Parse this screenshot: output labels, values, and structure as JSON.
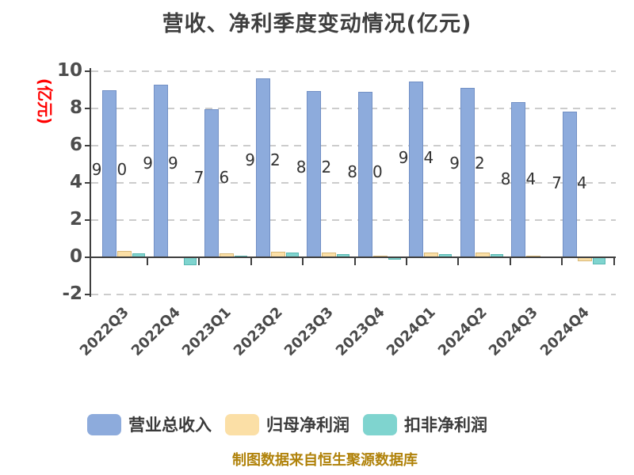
{
  "title": "营收、净利季度变动情况(亿元)",
  "y_axis": {
    "label": "(亿元)",
    "color": "#FF0000"
  },
  "footer": "制图数据来自恒生聚源数据库",
  "chart_data": {
    "type": "bar",
    "title": "营收、净利季度变动情况(亿元)",
    "categories": [
      "2022Q3",
      "2022Q4",
      "2023Q1",
      "2023Q2",
      "2023Q3",
      "2023Q4",
      "2024Q1",
      "2024Q2",
      "2024Q3",
      "2024Q4"
    ],
    "series": [
      {
        "name": "营业总收入",
        "color": "#8DABDC",
        "border_color": "#7290C5",
        "values": [
          9.0,
          9.29,
          7.96,
          9.62,
          8.92,
          8.9,
          9.44,
          9.12,
          8.34,
          7.84
        ],
        "bar_labels": [
          "9.00",
          "9.29",
          "7.96",
          "9.62",
          "8.92",
          "8.90",
          "9.44",
          "9.12",
          "8.34",
          "7.84"
        ]
      },
      {
        "name": "归母净利润",
        "color": "#FBDFA6",
        "border_color": "#D8B878",
        "values": [
          0.34,
          0.02,
          0.23,
          0.28,
          0.25,
          0.07,
          0.24,
          0.24,
          0.1,
          -0.22
        ]
      },
      {
        "name": "扣非净利润",
        "color": "#7FD4CF",
        "border_color": "#59B8B2",
        "values": [
          0.2,
          -0.42,
          0.08,
          0.25,
          0.15,
          -0.12,
          0.18,
          0.18,
          0.02,
          -0.4
        ]
      }
    ],
    "ylabel": "(亿元)",
    "ylim": [
      -2,
      10
    ],
    "yticks": [
      10,
      8,
      6,
      4,
      2,
      0,
      -2
    ],
    "grid": "horizontal-dashed",
    "legend_position": "bottom",
    "value_labels_on": "营业总收入",
    "axis_color": "#3F3F3F",
    "grid_color": "#CCCCCC",
    "tick_text_color": "#4D4D4D",
    "footer_color": "#B0820A"
  }
}
